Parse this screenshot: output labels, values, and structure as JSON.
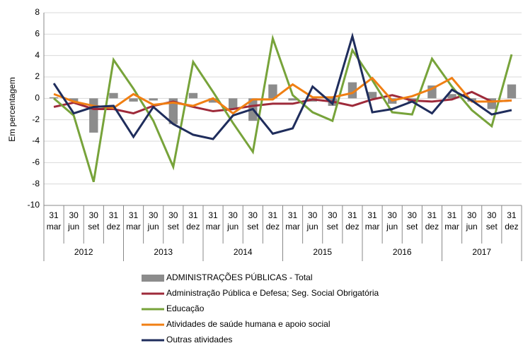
{
  "chart_data": {
    "type": "combo",
    "y_label": "Em percentagem",
    "categories": [
      "31 mar",
      "30 jun",
      "30 set",
      "31 dez",
      "31 mar",
      "30 jun",
      "30 set",
      "31 dez",
      "31 mar",
      "30 jun",
      "30 set",
      "31 dez",
      "31 mar",
      "30 jun",
      "30 set",
      "31 dez",
      "31 mar",
      "30 jun",
      "30 set",
      "31 dez",
      "31 mar",
      "30 jun",
      "30 set",
      "31 dez"
    ],
    "x_groups": [
      "2012",
      "2013",
      "2014",
      "2015",
      "2016",
      "2017"
    ],
    "ylim": [
      -10,
      8
    ],
    "yticks": [
      -10,
      -8,
      -6,
      -4,
      -2,
      0,
      2,
      4,
      6,
      8
    ],
    "grid": true,
    "series": [
      {
        "name": "ADMINISTRAÇÕES PÚBLICAS - Total",
        "type": "bar",
        "color": "#8c8c8c",
        "values": [
          0.1,
          -0.3,
          -3.2,
          0.5,
          -0.3,
          -0.2,
          -2.4,
          0.5,
          -0.4,
          -1.0,
          -2.1,
          1.3,
          -0.2,
          -0.3,
          -0.7,
          1.5,
          0.6,
          -0.5,
          -0.4,
          1.2,
          0.4,
          -0.3,
          -1.0,
          1.3
        ]
      },
      {
        "name": "Administração Pública e Defesa; Seg. Social Obrigatória",
        "type": "line",
        "color": "#9e2a3a",
        "values": [
          -0.8,
          -0.4,
          -1.0,
          -1.0,
          -1.4,
          -0.7,
          -0.3,
          -0.8,
          -1.2,
          -1.0,
          -0.7,
          -0.5,
          -0.5,
          -0.1,
          -0.3,
          -0.7,
          -0.1,
          0.3,
          -0.2,
          -0.3,
          -0.1,
          0.6,
          -0.3,
          -0.2
        ]
      },
      {
        "name": "Educação",
        "type": "line",
        "color": "#77a33a",
        "values": [
          0.0,
          -1.6,
          -7.8,
          3.6,
          0.9,
          -2.1,
          -6.4,
          3.4,
          0.6,
          -2.3,
          -5.0,
          5.6,
          0.3,
          -1.3,
          -2.1,
          4.5,
          1.7,
          -1.3,
          -1.5,
          3.7,
          1.1,
          -1.1,
          -2.6,
          4.1
        ]
      },
      {
        "name": "Atividades de saúde humana e apoio social",
        "type": "line",
        "color": "#f07f13",
        "values": [
          0.4,
          -0.3,
          -0.7,
          -0.9,
          0.4,
          -0.6,
          -0.4,
          -0.7,
          0.0,
          -1.4,
          -0.1,
          -0.1,
          1.3,
          0.1,
          0.1,
          0.5,
          1.9,
          -0.2,
          0.2,
          0.9,
          1.9,
          -0.3,
          -0.3,
          -0.2
        ]
      },
      {
        "name": "Outras atividades",
        "type": "line",
        "color": "#1f2d5c",
        "values": [
          1.4,
          -1.4,
          -0.8,
          -0.7,
          -3.6,
          -0.8,
          -2.4,
          -3.4,
          -3.8,
          -1.6,
          -1.0,
          -3.3,
          -2.8,
          1.1,
          -0.5,
          5.8,
          -1.3,
          -1.0,
          -0.3,
          -1.4,
          0.8,
          -0.2,
          -1.5,
          -1.1
        ]
      }
    ]
  }
}
